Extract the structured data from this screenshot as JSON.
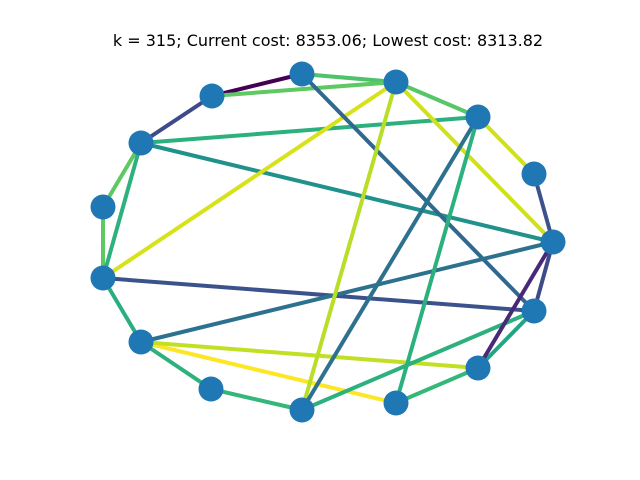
{
  "header": {
    "title": "k = 315; Current cost: 8353.06; Lowest cost: 8313.82"
  },
  "graph": {
    "node_color": "#1f77b4",
    "nodes": [
      "n0",
      "n1",
      "n2",
      "n3",
      "n4",
      "n5",
      "n6",
      "n7",
      "n8",
      "n9",
      "n10",
      "n11",
      "n12",
      "n13",
      "n14"
    ],
    "edges": [
      {
        "from": "n5",
        "to": "n6",
        "color": "#440154"
      },
      {
        "from": "n0",
        "to": "n2",
        "color": "#482878"
      },
      {
        "from": "n1",
        "to": "n2",
        "color": "#3e4a89"
      },
      {
        "from": "n6",
        "to": "n12",
        "color": "#31688e"
      },
      {
        "from": "n3",
        "to": "n0",
        "color": "#3b528b"
      },
      {
        "from": "n11",
        "to": "n9",
        "color": "#2c728e"
      },
      {
        "from": "n6",
        "to": "n1",
        "color": "#3b528b"
      },
      {
        "from": "n12",
        "to": "n2",
        "color": "#2a788e"
      },
      {
        "from": "n4",
        "to": "n2",
        "color": "#21918c"
      },
      {
        "from": "n10",
        "to": "n4",
        "color": "#1fa187"
      },
      {
        "from": "n11",
        "to": "n9",
        "color": "#26818e"
      },
      {
        "from": "n4",
        "to": "n9",
        "color": "#2a9d8f"
      },
      {
        "from": "n5",
        "to": "n10",
        "color": "#2db27d"
      },
      {
        "from": "n11",
        "to": "n10",
        "color": "#35b779"
      },
      {
        "from": "n10",
        "to": "n1",
        "color": "#2cb17e"
      },
      {
        "from": "n1",
        "to": "n2",
        "color": "#2cb17e"
      },
      {
        "from": "n3",
        "to": "n11",
        "color": "#21a685"
      },
      {
        "from": "n4",
        "to": "n3",
        "color": "#4ac16d"
      },
      {
        "from": "n3",
        "to": "n12",
        "color": "#34b679"
      },
      {
        "from": "n12",
        "to": "n13",
        "color": "#29af7f"
      },
      {
        "from": "n13",
        "to": "n9",
        "color": "#35b779"
      },
      {
        "from": "n14",
        "to": "n9",
        "color": "#4ec36b"
      },
      {
        "from": "n7",
        "to": "n8",
        "color": "#5ec962"
      },
      {
        "from": "n8",
        "to": "n7",
        "color": "#56c667"
      },
      {
        "from": "n7",
        "to": "n1",
        "color": "#3ddc84"
      },
      {
        "from": "n7",
        "to": "n9",
        "color": "#bade28"
      },
      {
        "from": "n8",
        "to": "n12",
        "color": "#a8db34"
      },
      {
        "from": "n8",
        "to": "n3",
        "color": "#d0e11c"
      },
      {
        "from": "n14",
        "to": "n1",
        "color": "#c2df23"
      },
      {
        "from": "n13",
        "to": "n14",
        "color": "#fde725"
      },
      {
        "from": "n11",
        "to": "n1",
        "color": "#d8e219"
      },
      {
        "from": "n8",
        "to": "n6",
        "color": "#5ec962"
      }
    ]
  }
}
